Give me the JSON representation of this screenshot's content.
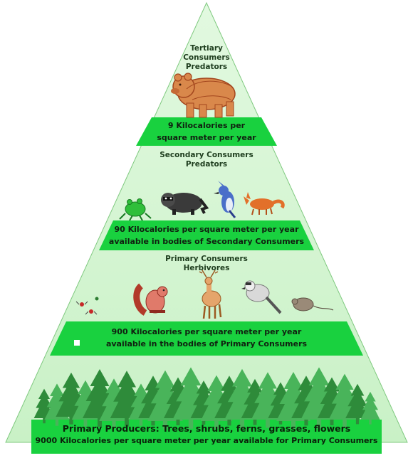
{
  "diagram": {
    "colors": {
      "pyramid_fill": "#c8f2c6",
      "pyramid_edge": "#6bbf6b",
      "band_fill": "#19d13f",
      "tree_dark": "#2e8b3a",
      "tree_light": "#49b45a"
    },
    "tiers": [
      {
        "id": "tertiary",
        "title_lines": [
          "Tertiary",
          "Consumers",
          "Predators"
        ],
        "icons": [
          "bear-icon"
        ],
        "energy_lines": [
          "9 Kilocalories per",
          "square meter per year"
        ]
      },
      {
        "id": "secondary",
        "title_lines": [
          "Secondary Consumers",
          "Predators"
        ],
        "icons": [
          "frog-icon",
          "raccoon-icon",
          "blue-jay-icon",
          "fox-icon"
        ],
        "energy_lines": [
          "90 Kilocalories per square meter per year",
          "available in bodies of Secondary Consumers"
        ]
      },
      {
        "id": "primary",
        "title_lines": [
          "Primary Consumers",
          "Herbivores"
        ],
        "icons": [
          "insects-icon",
          "squirrel-icon",
          "deer-icon",
          "gray-jay-icon",
          "mouse-icon"
        ],
        "energy_lines": [
          "900 Kilocalories per square meter per year",
          "available in the bodies of Primary Consumers"
        ]
      },
      {
        "id": "producers",
        "title_lines": [
          "Primary Producers:  Trees, shrubs, ferns, grasses, flowers"
        ],
        "icons": [
          "conifer-tree-icon"
        ],
        "energy_lines": [
          "9000 Kilocalories per square meter per year available for Primary Consumers"
        ]
      }
    ]
  }
}
